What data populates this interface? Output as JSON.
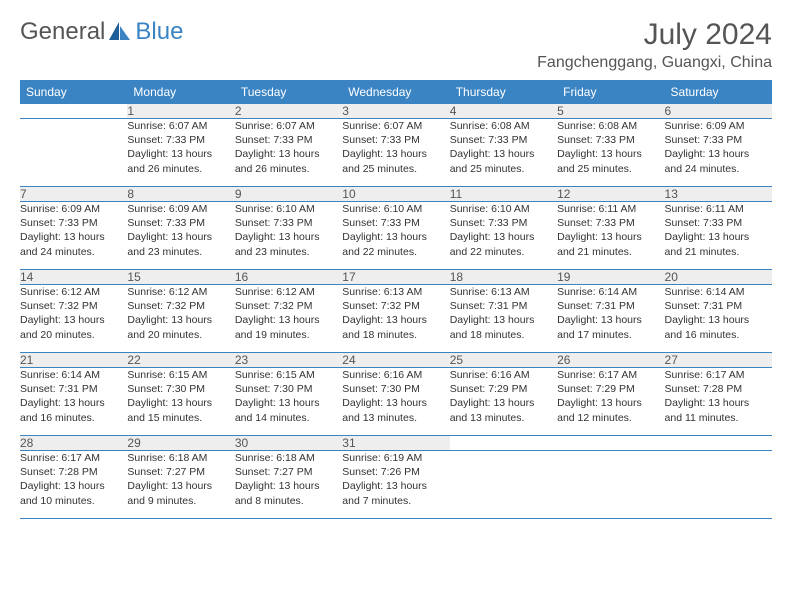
{
  "brand": {
    "word1": "General",
    "word2": "Blue"
  },
  "title": "July 2024",
  "location": "Fangchenggang, Guangxi, China",
  "colors": {
    "accent": "#3b84c4",
    "header_text": "#ffffff",
    "daynum_bg": "#eeeeee",
    "text": "#333333",
    "muted": "#555555"
  },
  "day_headers": [
    "Sunday",
    "Monday",
    "Tuesday",
    "Wednesday",
    "Thursday",
    "Friday",
    "Saturday"
  ],
  "weeks": [
    {
      "nums": [
        "",
        "1",
        "2",
        "3",
        "4",
        "5",
        "6"
      ],
      "details": [
        [],
        [
          "Sunrise: 6:07 AM",
          "Sunset: 7:33 PM",
          "Daylight: 13 hours",
          "and 26 minutes."
        ],
        [
          "Sunrise: 6:07 AM",
          "Sunset: 7:33 PM",
          "Daylight: 13 hours",
          "and 26 minutes."
        ],
        [
          "Sunrise: 6:07 AM",
          "Sunset: 7:33 PM",
          "Daylight: 13 hours",
          "and 25 minutes."
        ],
        [
          "Sunrise: 6:08 AM",
          "Sunset: 7:33 PM",
          "Daylight: 13 hours",
          "and 25 minutes."
        ],
        [
          "Sunrise: 6:08 AM",
          "Sunset: 7:33 PM",
          "Daylight: 13 hours",
          "and 25 minutes."
        ],
        [
          "Sunrise: 6:09 AM",
          "Sunset: 7:33 PM",
          "Daylight: 13 hours",
          "and 24 minutes."
        ]
      ]
    },
    {
      "nums": [
        "7",
        "8",
        "9",
        "10",
        "11",
        "12",
        "13"
      ],
      "details": [
        [
          "Sunrise: 6:09 AM",
          "Sunset: 7:33 PM",
          "Daylight: 13 hours",
          "and 24 minutes."
        ],
        [
          "Sunrise: 6:09 AM",
          "Sunset: 7:33 PM",
          "Daylight: 13 hours",
          "and 23 minutes."
        ],
        [
          "Sunrise: 6:10 AM",
          "Sunset: 7:33 PM",
          "Daylight: 13 hours",
          "and 23 minutes."
        ],
        [
          "Sunrise: 6:10 AM",
          "Sunset: 7:33 PM",
          "Daylight: 13 hours",
          "and 22 minutes."
        ],
        [
          "Sunrise: 6:10 AM",
          "Sunset: 7:33 PM",
          "Daylight: 13 hours",
          "and 22 minutes."
        ],
        [
          "Sunrise: 6:11 AM",
          "Sunset: 7:33 PM",
          "Daylight: 13 hours",
          "and 21 minutes."
        ],
        [
          "Sunrise: 6:11 AM",
          "Sunset: 7:33 PM",
          "Daylight: 13 hours",
          "and 21 minutes."
        ]
      ]
    },
    {
      "nums": [
        "14",
        "15",
        "16",
        "17",
        "18",
        "19",
        "20"
      ],
      "details": [
        [
          "Sunrise: 6:12 AM",
          "Sunset: 7:32 PM",
          "Daylight: 13 hours",
          "and 20 minutes."
        ],
        [
          "Sunrise: 6:12 AM",
          "Sunset: 7:32 PM",
          "Daylight: 13 hours",
          "and 20 minutes."
        ],
        [
          "Sunrise: 6:12 AM",
          "Sunset: 7:32 PM",
          "Daylight: 13 hours",
          "and 19 minutes."
        ],
        [
          "Sunrise: 6:13 AM",
          "Sunset: 7:32 PM",
          "Daylight: 13 hours",
          "and 18 minutes."
        ],
        [
          "Sunrise: 6:13 AM",
          "Sunset: 7:31 PM",
          "Daylight: 13 hours",
          "and 18 minutes."
        ],
        [
          "Sunrise: 6:14 AM",
          "Sunset: 7:31 PM",
          "Daylight: 13 hours",
          "and 17 minutes."
        ],
        [
          "Sunrise: 6:14 AM",
          "Sunset: 7:31 PM",
          "Daylight: 13 hours",
          "and 16 minutes."
        ]
      ]
    },
    {
      "nums": [
        "21",
        "22",
        "23",
        "24",
        "25",
        "26",
        "27"
      ],
      "details": [
        [
          "Sunrise: 6:14 AM",
          "Sunset: 7:31 PM",
          "Daylight: 13 hours",
          "and 16 minutes."
        ],
        [
          "Sunrise: 6:15 AM",
          "Sunset: 7:30 PM",
          "Daylight: 13 hours",
          "and 15 minutes."
        ],
        [
          "Sunrise: 6:15 AM",
          "Sunset: 7:30 PM",
          "Daylight: 13 hours",
          "and 14 minutes."
        ],
        [
          "Sunrise: 6:16 AM",
          "Sunset: 7:30 PM",
          "Daylight: 13 hours",
          "and 13 minutes."
        ],
        [
          "Sunrise: 6:16 AM",
          "Sunset: 7:29 PM",
          "Daylight: 13 hours",
          "and 13 minutes."
        ],
        [
          "Sunrise: 6:17 AM",
          "Sunset: 7:29 PM",
          "Daylight: 13 hours",
          "and 12 minutes."
        ],
        [
          "Sunrise: 6:17 AM",
          "Sunset: 7:28 PM",
          "Daylight: 13 hours",
          "and 11 minutes."
        ]
      ]
    },
    {
      "nums": [
        "28",
        "29",
        "30",
        "31",
        "",
        "",
        ""
      ],
      "details": [
        [
          "Sunrise: 6:17 AM",
          "Sunset: 7:28 PM",
          "Daylight: 13 hours",
          "and 10 minutes."
        ],
        [
          "Sunrise: 6:18 AM",
          "Sunset: 7:27 PM",
          "Daylight: 13 hours",
          "and 9 minutes."
        ],
        [
          "Sunrise: 6:18 AM",
          "Sunset: 7:27 PM",
          "Daylight: 13 hours",
          "and 8 minutes."
        ],
        [
          "Sunrise: 6:19 AM",
          "Sunset: 7:26 PM",
          "Daylight: 13 hours",
          "and 7 minutes."
        ],
        [],
        [],
        []
      ]
    }
  ]
}
